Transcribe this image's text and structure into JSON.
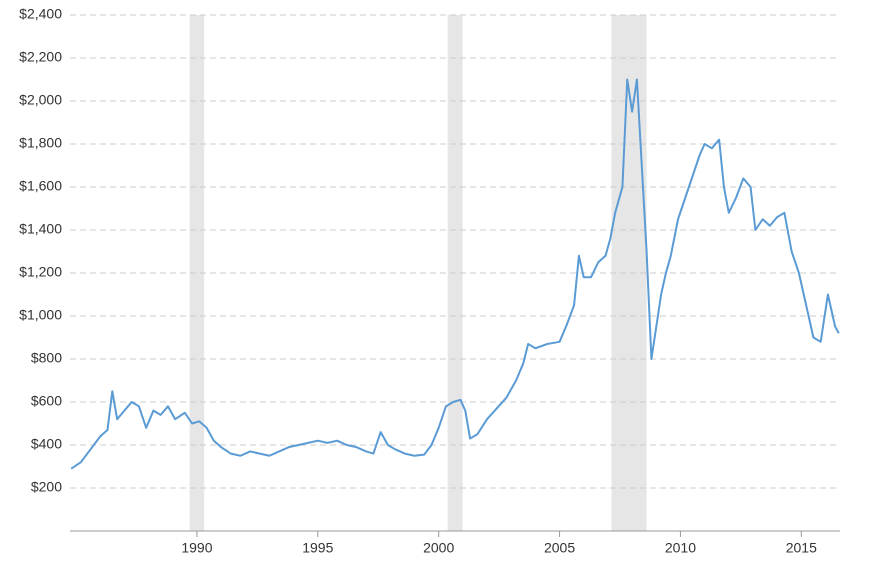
{
  "chart_data": {
    "type": "line",
    "x": [
      1984.8,
      1985.2,
      1985.6,
      1986.0,
      1986.3,
      1986.5,
      1986.7,
      1987.0,
      1987.3,
      1987.6,
      1987.9,
      1988.2,
      1988.5,
      1988.8,
      1989.1,
      1989.5,
      1989.8,
      1990.1,
      1990.4,
      1990.7,
      1991.0,
      1991.4,
      1991.8,
      1992.2,
      1992.6,
      1993.0,
      1993.4,
      1993.8,
      1994.2,
      1994.6,
      1995.0,
      1995.4,
      1995.8,
      1996.2,
      1996.6,
      1997.0,
      1997.3,
      1997.6,
      1997.9,
      1998.2,
      1998.6,
      1999.0,
      1999.4,
      1999.7,
      2000.0,
      2000.3,
      2000.6,
      2000.9,
      2001.1,
      2001.3,
      2001.6,
      2002.0,
      2002.4,
      2002.8,
      2003.2,
      2003.5,
      2003.7,
      2004.0,
      2004.5,
      2005.0,
      2005.3,
      2005.6,
      2005.8,
      2006.0,
      2006.3,
      2006.6,
      2006.9,
      2007.1,
      2007.3,
      2007.6,
      2007.8,
      2008.0,
      2008.2,
      2008.4,
      2008.6,
      2008.8,
      2009.0,
      2009.2,
      2009.4,
      2009.6,
      2009.9,
      2010.2,
      2010.5,
      2010.8,
      2011.0,
      2011.3,
      2011.6,
      2011.8,
      2012.0,
      2012.3,
      2012.6,
      2012.9,
      2013.1,
      2013.4,
      2013.7,
      2014.0,
      2014.3,
      2014.6,
      2014.9,
      2015.2,
      2015.5,
      2015.8,
      2016.1,
      2016.4,
      2016.55
    ],
    "series": [
      {
        "color": "#5b9bd5",
        "values": [
          290,
          320,
          380,
          440,
          470,
          650,
          520,
          560,
          600,
          580,
          480,
          560,
          540,
          580,
          520,
          550,
          500,
          510,
          480,
          420,
          390,
          360,
          350,
          370,
          360,
          350,
          370,
          390,
          400,
          410,
          420,
          410,
          420,
          400,
          390,
          370,
          360,
          460,
          400,
          380,
          360,
          350,
          355,
          400,
          480,
          580,
          600,
          610,
          560,
          430,
          450,
          520,
          570,
          620,
          700,
          780,
          870,
          850,
          870,
          880,
          960,
          1050,
          1280,
          1180,
          1180,
          1250,
          1280,
          1360,
          1480,
          1600,
          2100,
          1950,
          2100,
          1700,
          1300,
          800,
          950,
          1100,
          1200,
          1280,
          1450,
          1550,
          1650,
          1750,
          1800,
          1780,
          1820,
          1600,
          1480,
          1550,
          1640,
          1600,
          1400,
          1450,
          1420,
          1460,
          1480,
          1300,
          1200,
          1050,
          900,
          880,
          1100,
          950,
          920
        ]
      }
    ],
    "shaded_ranges": [
      [
        1989.7,
        1990.3
      ],
      [
        2000.37,
        2000.99
      ],
      [
        2007.15,
        2008.6
      ]
    ],
    "xlim": [
      1984.75,
      2016.6
    ],
    "xticks": [
      1990,
      1995,
      2000,
      2005,
      2010,
      2015
    ],
    "ylim": [
      0,
      2400
    ],
    "yticks": [
      {
        "value": 200,
        "label": "$200"
      },
      {
        "value": 400,
        "label": "$400"
      },
      {
        "value": 600,
        "label": "$600"
      },
      {
        "value": 800,
        "label": "$800"
      },
      {
        "value": 1000,
        "label": "$1,000"
      },
      {
        "value": 1200,
        "label": "$1,200"
      },
      {
        "value": 1400,
        "label": "$1,400"
      },
      {
        "value": 1600,
        "label": "$1,600"
      },
      {
        "value": 1800,
        "label": "$1,800"
      },
      {
        "value": 2000,
        "label": "$2,000"
      },
      {
        "value": 2200,
        "label": "$2,200"
      },
      {
        "value": 2400,
        "label": "$2,400"
      }
    ],
    "grid": true
  }
}
